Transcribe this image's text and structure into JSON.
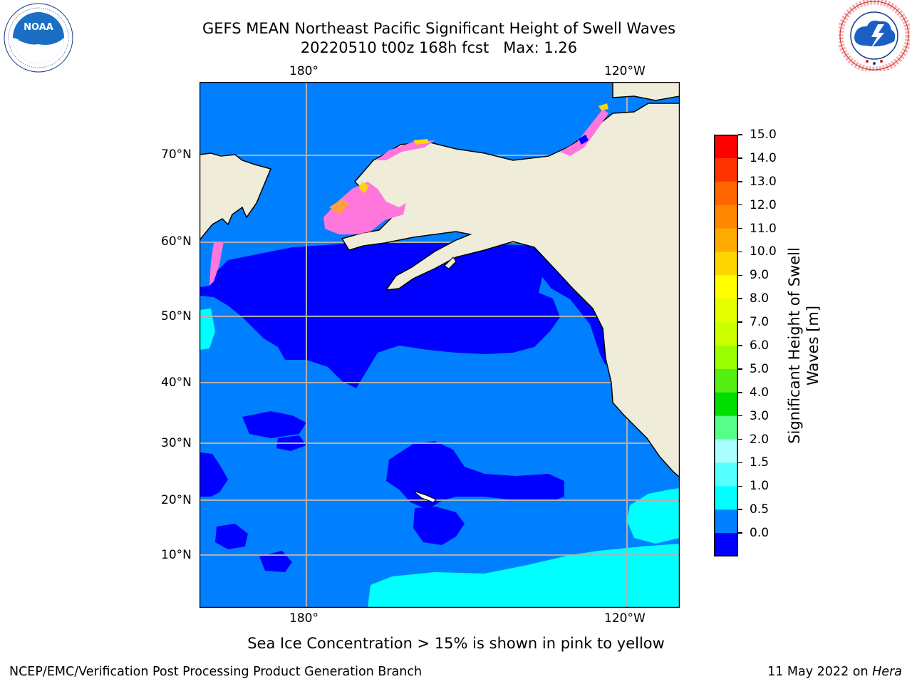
{
  "header": {
    "title_line1": "GEFS MEAN Northeast Pacific Significant Height of Swell Waves",
    "title_line2": "20220510 t00z 168h fcst   Max: 1.26"
  },
  "logos": {
    "left": {
      "name": "NOAA",
      "ring_text": "NATIONAL OCEANIC AND ATMOSPHERIC ADMINISTRATION · U.S. DEPARTMENT OF COMMERCE",
      "color": "#1a6fc4"
    },
    "right": {
      "name": "NATIONAL WEATHER SERVICE",
      "color": "#1a5fc4",
      "ring_color": "#d62020"
    }
  },
  "map": {
    "lon_labels_top": [
      "180°",
      "120°W"
    ],
    "lon_labels_bottom": [
      "180°",
      "120°W"
    ],
    "lat_labels": [
      "70°N",
      "60°N",
      "50°N",
      "40°N",
      "30°N",
      "20°N",
      "10°N"
    ],
    "land_color": "#efecd9",
    "ice_colors": [
      "#ff77dd",
      "#ff9f3f",
      "#ffd700"
    ]
  },
  "colorbar": {
    "title_line1": "Significant Height of Swell",
    "title_line2": "Waves [m]",
    "ticks": [
      "15.0",
      "14.0",
      "13.0",
      "12.0",
      "11.0",
      "10.0",
      "9.0",
      "8.0",
      "7.0",
      "6.0",
      "5.0",
      "4.0",
      "3.0",
      "2.0",
      "1.5",
      "1.0",
      "0.5",
      "0.0"
    ],
    "colors_top_to_bottom": [
      "#ff0000",
      "#ff3300",
      "#ff6600",
      "#ff8800",
      "#ffaa00",
      "#ffd700",
      "#ffff00",
      "#e6ff00",
      "#ccff00",
      "#99ff00",
      "#55ee11",
      "#00dd00",
      "#55ff88",
      "#aaffff",
      "#55ffff",
      "#00ffff",
      "#0080ff",
      "#0000ff"
    ]
  },
  "note": "Sea Ice Concentration > 15% is shown in pink to yellow",
  "footer": {
    "left": "NCEP/EMC/Verification Post Processing Product Generation Branch",
    "right_date": "11 May 2022 on ",
    "right_host": "Hera"
  }
}
